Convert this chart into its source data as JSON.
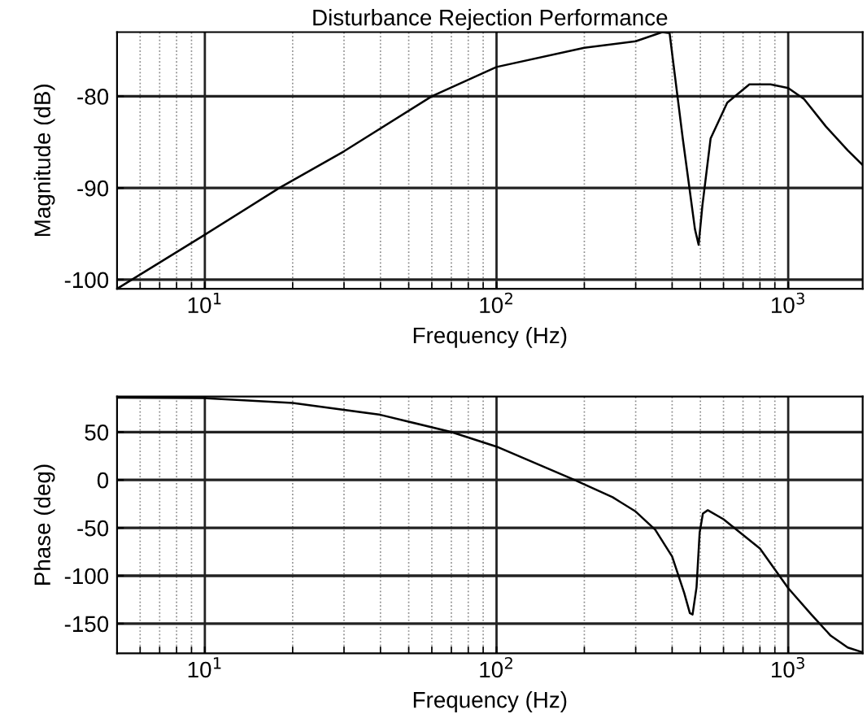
{
  "chart_data": [
    {
      "type": "line",
      "title": "Disturbance Rejection Performance",
      "xlabel": "Frequency (Hz)",
      "ylabel": "Magnitude (dB)",
      "log": "x",
      "grid": true,
      "xlim": [
        5,
        1800
      ],
      "xticks": [
        {
          "value": 10,
          "label": "10$^{1}$"
        },
        {
          "value": 100,
          "label": "10$^{2}$"
        },
        {
          "value": 1000,
          "label": "10$^{3}$"
        }
      ],
      "ylim": [
        -101,
        -73
      ],
      "yticks": [
        -100,
        -90,
        -80
      ],
      "series": [
        {
          "color": "#000000",
          "x": [
            5,
            10,
            18,
            30,
            60,
            100,
            200,
            300,
            370,
            392,
            435,
            479,
            493,
            508,
            542,
            618,
            736,
            870,
            1000,
            1133,
            1347,
            1600,
            1800
          ],
          "values": [
            -101,
            -95.1,
            -90,
            -86,
            -80,
            -76.8,
            -74.7,
            -74,
            -73,
            -73.1,
            -84.6,
            -94.5,
            -96.2,
            -91.9,
            -84.6,
            -80.7,
            -78.7,
            -78.7,
            -79.1,
            -80.3,
            -83.3,
            -85.9,
            -87.5
          ]
        }
      ]
    },
    {
      "type": "line",
      "xlabel": "Frequency (Hz)",
      "ylabel": "Phase (deg)",
      "log": "x",
      "grid": true,
      "xlim": [
        5,
        1800
      ],
      "xticks": [
        {
          "value": 10,
          "label": "10$^{1}$"
        },
        {
          "value": 100,
          "label": "10$^{2}$"
        },
        {
          "value": 1000,
          "label": "10$^{3}$"
        }
      ],
      "ylim": [
        -181,
        87
      ],
      "yticks": [
        -150,
        -100,
        -50,
        0,
        50
      ],
      "series": [
        {
          "color": "#000000",
          "x": [
            5,
            10,
            20,
            40,
            70,
            100,
            185,
            250,
            300,
            350,
            400,
            440,
            460,
            470,
            485,
            497,
            510,
            530,
            600,
            800,
            1000,
            1200,
            1400,
            1600,
            1800
          ],
          "values": [
            86,
            85.4,
            80.4,
            68,
            50,
            34.8,
            0,
            -18,
            -33,
            -52,
            -80,
            -118,
            -139,
            -140.5,
            -112,
            -55,
            -35,
            -31.6,
            -41,
            -71.5,
            -113,
            -140.5,
            -162.7,
            -175,
            -180
          ]
        }
      ]
    }
  ]
}
